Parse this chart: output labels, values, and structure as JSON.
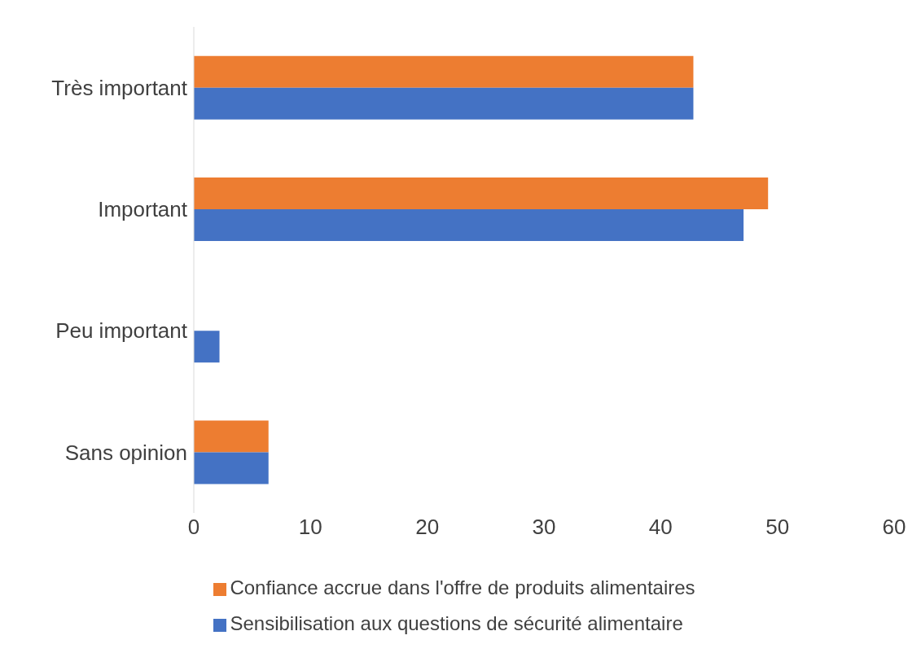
{
  "chart_data": {
    "type": "bar",
    "orientation": "horizontal",
    "categories": [
      "Très important",
      "Important",
      "Peu important",
      "Sans opinion"
    ],
    "series": [
      {
        "name": "Confiance accrue dans l'offre de produits alimentaires",
        "color": "#ed7d31",
        "values": [
          42.8,
          49.2,
          0,
          6.4
        ]
      },
      {
        "name": "Sensibilisation aux questions de sécurité alimentaire",
        "color": "#4472c4",
        "values": [
          42.8,
          47.1,
          2.2,
          6.4
        ]
      }
    ],
    "xlim": [
      0,
      60
    ],
    "xticks": [
      0,
      10,
      20,
      30,
      40,
      50,
      60
    ],
    "grid": false,
    "legend": "bottom"
  }
}
